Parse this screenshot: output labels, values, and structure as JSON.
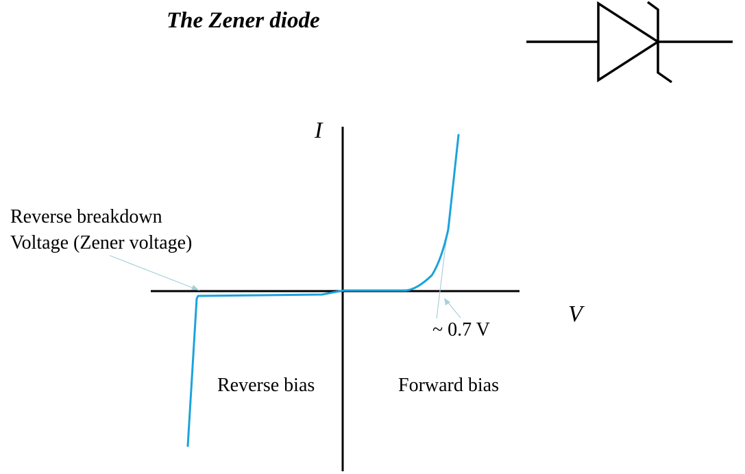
{
  "title": "The Zener diode",
  "axes": {
    "y_label": "I",
    "x_label": "V"
  },
  "annotations": {
    "breakdown_line1": "Reverse breakdown",
    "breakdown_line2": "Voltage (Zener voltage)",
    "forward_voltage": "~ 0.7 V",
    "reverse_region": "Reverse bias",
    "forward_region": "Forward bias"
  },
  "symbol": {
    "name": "zener-diode-symbol"
  },
  "colors": {
    "curve": "#1aa3dc",
    "pointer": "#a9cfd9",
    "axes": "#000000"
  }
}
